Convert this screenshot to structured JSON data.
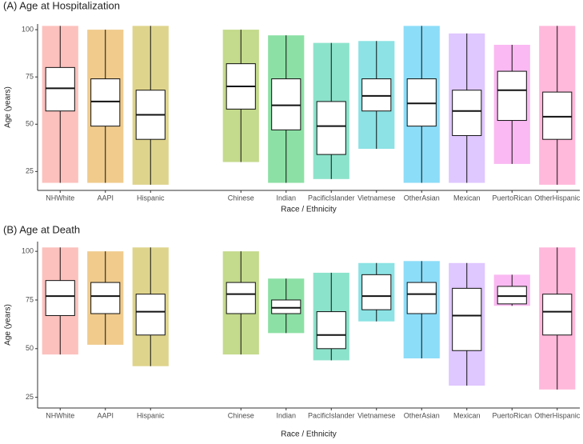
{
  "chart_data": [
    {
      "type": "boxplot",
      "title": "(A) Age at Hospitalization",
      "xlabel": "Race / Ethnicity",
      "ylabel": "Age (years)",
      "categories": [
        "NHWhite",
        "AAPI",
        "Hispanic",
        null,
        "Chinese",
        "Indian",
        "PacificIslander",
        "Vietnamese",
        "OtherAsian",
        "Mexican",
        "PuertoRican",
        "OtherHispanic"
      ],
      "colors": [
        "#f8766d",
        "#de8c00",
        "#b79f00",
        null,
        "#7cae00",
        "#00ba38",
        "#00c08b",
        "#00bfc4",
        "#00b4f0",
        "#b983ff",
        "#f564e3",
        "#ff64b0"
      ],
      "whisker_low": [
        19,
        19,
        18,
        null,
        30,
        19,
        21,
        37,
        19,
        19,
        29,
        18
      ],
      "q1": [
        57,
        49,
        42,
        null,
        58,
        47,
        34,
        57,
        49,
        44,
        52,
        42
      ],
      "median": [
        69,
        62,
        55,
        null,
        70,
        60,
        49,
        65,
        61,
        57,
        68,
        54
      ],
      "q3": [
        80,
        74,
        68,
        null,
        82,
        74,
        62,
        74,
        74,
        68,
        78,
        67
      ],
      "whisker_high": [
        102,
        100,
        102,
        null,
        100,
        97,
        93,
        94,
        102,
        98,
        92,
        102
      ],
      "ylim": [
        15,
        103
      ],
      "yticks": [
        25,
        50,
        75,
        100
      ]
    },
    {
      "type": "boxplot",
      "title": "(B) Age at Death",
      "xlabel": "Race / Ethnicity",
      "ylabel": "Age (years)",
      "categories": [
        "NHWhite",
        "AAPI",
        "Hispanic",
        null,
        "Chinese",
        "Indian",
        "PacificIslander",
        "Vietnamese",
        "OtherAsian",
        "Mexican",
        "PuertoRican",
        "OtherHispanic"
      ],
      "colors": [
        "#f8766d",
        "#de8c00",
        "#b79f00",
        null,
        "#7cae00",
        "#00ba38",
        "#00c08b",
        "#00bfc4",
        "#00b4f0",
        "#b983ff",
        "#f564e3",
        "#ff64b0"
      ],
      "whisker_low": [
        47,
        52,
        41,
        null,
        47,
        58,
        44,
        64,
        45,
        31,
        72,
        29
      ],
      "q1": [
        67,
        68,
        57,
        null,
        68,
        68,
        50,
        70,
        68,
        49,
        73,
        57
      ],
      "median": [
        77,
        77,
        69,
        null,
        78,
        71,
        57,
        77,
        78,
        67,
        77,
        69
      ],
      "q3": [
        85,
        84,
        78,
        null,
        84,
        75,
        69,
        88,
        84,
        81,
        82,
        78
      ],
      "whisker_high": [
        102,
        100,
        102,
        null,
        100,
        86,
        89,
        94,
        95,
        94,
        88,
        102
      ],
      "ylim": [
        19.5,
        105
      ],
      "yticks": [
        25,
        50,
        75,
        100
      ]
    }
  ]
}
